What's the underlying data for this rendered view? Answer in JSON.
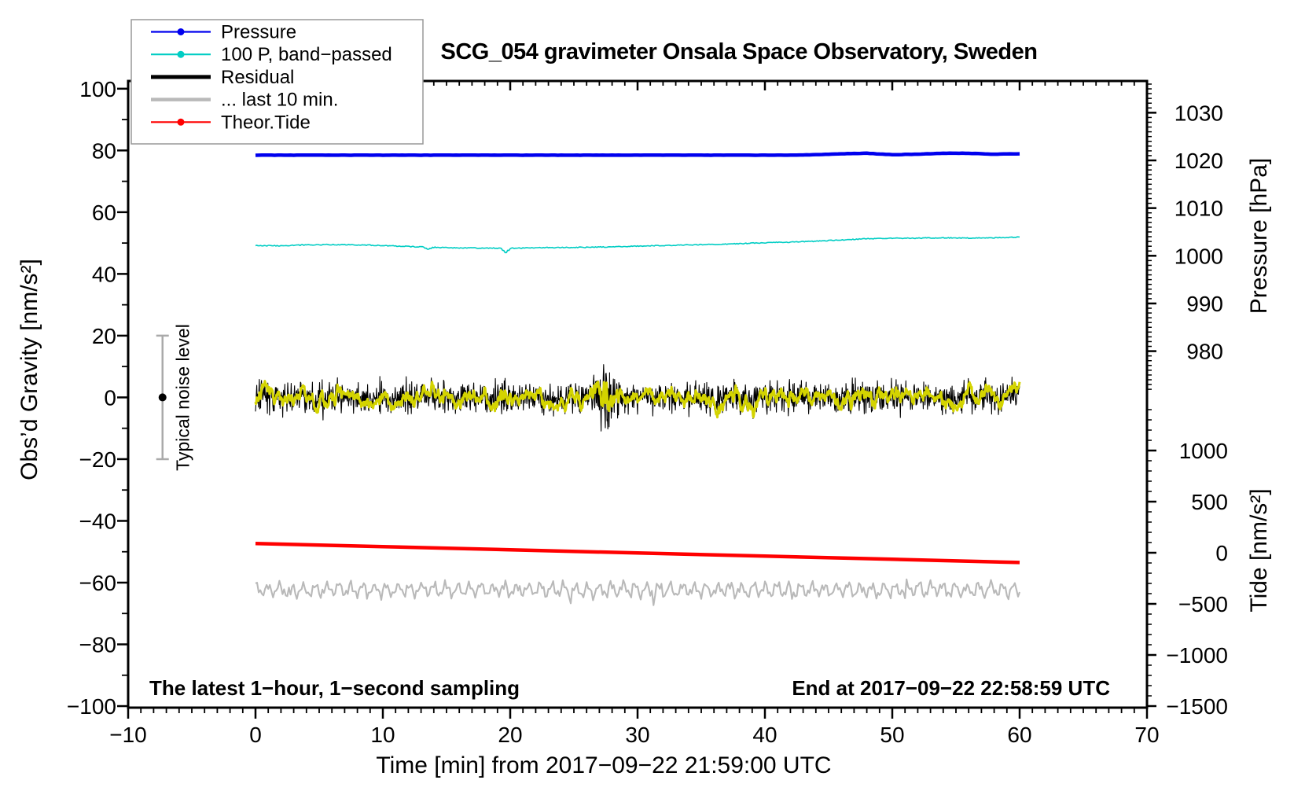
{
  "title": "SCG_054 gravimeter Onsala Space Observatory, Sweden",
  "annotations": {
    "sampling": "The latest 1−hour, 1−second sampling",
    "end_time": "End at 2017−09−22 22:58:59 UTC",
    "noise_label": "Typical noise level"
  },
  "chart_data": {
    "type": "line",
    "axes": {
      "x": {
        "label": "Time [min] from 2017−09−22 21:59:00 UTC",
        "range": [
          -10,
          70
        ],
        "major_ticks": [
          -10,
          0,
          10,
          20,
          30,
          40,
          50,
          60,
          70
        ],
        "minor_step": 1
      },
      "y_gravity": {
        "label": "Obs’d Gravity [nm/s²]",
        "range": [
          -100.5,
          102.5
        ],
        "major_ticks": [
          100,
          80,
          60,
          40,
          20,
          0,
          -20,
          -40,
          -60,
          -80,
          -100
        ],
        "minor_step": 10
      },
      "y_pressure": {
        "label": "Pressure [hPa]",
        "major_ticks": [
          1030,
          1020,
          1010,
          1000,
          990,
          980
        ],
        "minor_step": 1,
        "comb_range": [
          972,
          1036
        ]
      },
      "y_tide": {
        "label": "Tide [nm/s²]",
        "major_ticks": [
          1000,
          500,
          0,
          -500,
          -1000,
          -1500
        ],
        "minor_step": 100,
        "comb_range": [
          -1500,
          1400
        ]
      }
    },
    "legend": {
      "items": [
        {
          "label": "Pressure",
          "color": "#0000ee",
          "lw": 2.2,
          "dot": true
        },
        {
          "label": "100 P, band−passed",
          "color": "#00cdc4",
          "lw": 2.2,
          "dot": true
        },
        {
          "label": "Residual",
          "color": "#000000",
          "lw": 5.0,
          "dot": false
        },
        {
          "label": "... last 10 min.",
          "color": "#b9b9b9",
          "lw": 4.5,
          "dot": false
        },
        {
          "label": "Theor.Tide",
          "color": "#ff0000",
          "lw": 2.2,
          "dot": true
        }
      ]
    },
    "noise_bar": {
      "x_min": -7.3,
      "center_value": 0,
      "half_height": 20,
      "color": "#aaaaaa"
    },
    "series": {
      "pressure": {
        "name": "Pressure",
        "unit": "hPa",
        "color": "#0000ee",
        "x_step_min": 2,
        "values": [
          1021.1,
          1021.1,
          1021.1,
          1021.1,
          1021.1,
          1021.1,
          1021.1,
          1021.1,
          1021.1,
          1021.1,
          1021.1,
          1021.1,
          1021.1,
          1021.1,
          1021.1,
          1021.1,
          1021.1,
          1021.1,
          1021.1,
          1021.1,
          1021.1,
          1021.1,
          1021.2,
          1021.4,
          1021.5,
          1021.2,
          1021.3,
          1021.5,
          1021.5,
          1021.3,
          1021.4
        ]
      },
      "band_passed": {
        "name": "100 P, band-passed",
        "unit": "nm/s2",
        "color": "#00cdc4",
        "x_step_min": 2,
        "values": [
          49.2,
          49.1,
          49.4,
          49.5,
          49.4,
          49.2,
          48.9,
          48.6,
          48.4,
          48.4,
          48.3,
          48.5,
          48.6,
          48.6,
          48.8,
          49.0,
          49.2,
          49.4,
          49.6,
          49.8,
          50.1,
          50.3,
          50.6,
          51.0,
          51.4,
          51.5,
          51.6,
          51.7,
          51.6,
          51.7,
          51.9
        ],
        "spikes": [
          {
            "x": 19.7,
            "v": 46.9
          },
          {
            "x": 13.5,
            "v": 48.0
          }
        ]
      },
      "residual": {
        "name": "Residual",
        "unit": "nm/s2",
        "color": "#000000",
        "mean": 0,
        "noise_amp": 4.3,
        "burst": {
          "center_min": 27.6,
          "sigma_min": 0.9,
          "extra_amp": 6.0
        },
        "sample_step_s": 2
      },
      "residual_smoothed": {
        "name": "Residual smoothed",
        "color": "#d4d400",
        "ema_alpha": 0.1,
        "scale": 3.2
      },
      "residual_last10": {
        "name": "... last 10 min.",
        "unit": "nm/s2",
        "color": "#b9b9b9",
        "offset": -62.3,
        "amp1": 1.8,
        "period1_min": 0.93,
        "amp2": 1.1,
        "period2_min": 0.37,
        "jitter": 0.7
      },
      "tide": {
        "name": "Theor.Tide",
        "unit": "nm/s2 (tide axis)",
        "color": "#ff0000",
        "x_step_min": 10,
        "values": [
          90,
          60,
          29,
          -2,
          -33,
          -64,
          -95
        ]
      }
    }
  }
}
